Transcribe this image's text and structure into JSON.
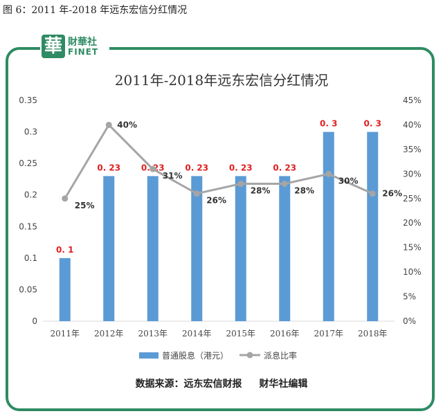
{
  "figure_caption": "图 6：2011 年-2018 年远东宏信分红情况",
  "logo": {
    "badge_char": "華",
    "name_cn": "財華社",
    "name_en": "FINET"
  },
  "source": {
    "prefix": "数据来源：远东宏信财报",
    "suffix": "财华社编辑"
  },
  "colors": {
    "bar": "#5b9bd5",
    "line": "#a5a5a5",
    "label_red": "#e02020",
    "frame": "#2f8b63"
  },
  "chart_data": {
    "type": "bar",
    "title": "2011年-2018年远东宏信分红情况",
    "categories": [
      "2011年",
      "2012年",
      "2013年",
      "2014年",
      "2015年",
      "2016年",
      "2017年",
      "2018年"
    ],
    "series": [
      {
        "name": "普通股息（港元）",
        "type": "bar",
        "axis": "left",
        "values": [
          0.1,
          0.23,
          0.23,
          0.23,
          0.23,
          0.23,
          0.3,
          0.3
        ],
        "labels": [
          "0. 1",
          "0. 23",
          "0. 23",
          "0. 23",
          "0. 23",
          "0. 23",
          "0. 3",
          "0. 3"
        ]
      },
      {
        "name": "派息比率",
        "type": "line",
        "axis": "right",
        "values": [
          25,
          40,
          31,
          26,
          28,
          28,
          30,
          26
        ],
        "labels": [
          "25%",
          "40%",
          "31%",
          "26%",
          "28%",
          "28%",
          "30%",
          "26%"
        ]
      }
    ],
    "y_left": {
      "min": 0,
      "max": 0.35,
      "ticks": [
        "0",
        "0.05",
        "0.1",
        "0.15",
        "0.2",
        "0.25",
        "0.3",
        "0.35"
      ]
    },
    "y_right": {
      "min": 0,
      "max": 45,
      "ticks": [
        "0%",
        "5%",
        "10%",
        "15%",
        "20%",
        "25%",
        "30%",
        "35%",
        "40%",
        "45%"
      ]
    },
    "legend": [
      "普通股息（港元）",
      "派息比率"
    ],
    "legend_position": "bottom",
    "grid": false
  }
}
